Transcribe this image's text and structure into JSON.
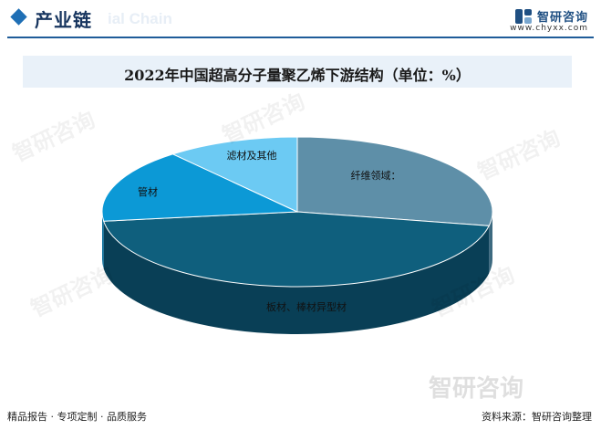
{
  "header": {
    "section_title": "产业链",
    "section_ghost": "ial Chain",
    "brand_name": "智研咨询",
    "brand_url": "www.chyxx.com"
  },
  "chart_data": {
    "type": "pie",
    "title": "2022年中国超高分子量聚乙烯下游结构（单位：%）",
    "slices": [
      {
        "label": "纤维领域",
        "value": 28,
        "color": "#5e8fa8",
        "side": "#3d6a80"
      },
      {
        "label": "板材、棒材异型材",
        "value": 45,
        "color": "#0f5f7d",
        "side": "#093f56"
      },
      {
        "label": "管材",
        "value": 16,
        "color": "#0c99d6",
        "side": "#0a6f9c"
      },
      {
        "label": "滤材及其他",
        "value": 11,
        "color": "#6ccaf3",
        "side": "#4fa2c6"
      }
    ],
    "label_suffix": {
      "纤维领域": "："
    }
  },
  "footer": {
    "left": "精品报告 · 专项定制 · 品质服务",
    "right": "资料来源：智研咨询整理"
  },
  "watermark": "智研咨询"
}
